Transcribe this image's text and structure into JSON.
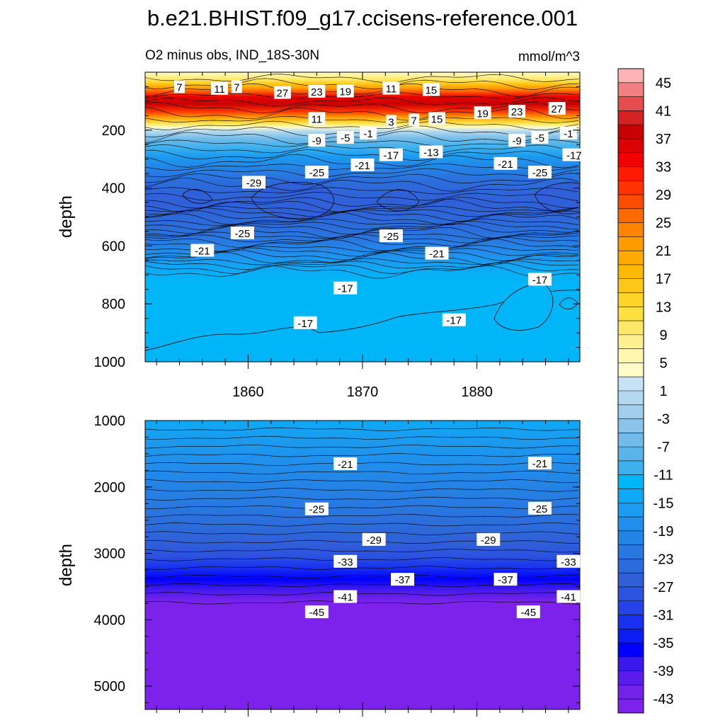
{
  "chart_data": {
    "type": "heatmap",
    "title": "b.e21.BHIST.f09_g17.ccisens-reference.001",
    "subtitle": "O2 minus obs, IND_18S-30N",
    "units": "mmol/m^3",
    "ylabel": "depth",
    "xlim": [
      1851,
      1889
    ],
    "xticks": [
      1860,
      1870,
      1880
    ],
    "colorbar": {
      "labels": [
        "45",
        "41",
        "37",
        "33",
        "29",
        "25",
        "21",
        "17",
        "13",
        "9",
        "5",
        "1",
        "-3",
        "-7",
        "-11",
        "-15",
        "-19",
        "-23",
        "-27",
        "-31",
        "-35",
        "-39",
        "-43"
      ],
      "colors": [
        "#ffb3b3",
        "#f28080",
        "#e34d4d",
        "#d42222",
        "#c80000",
        "#dd0000",
        "#f00000",
        "#ff1a00",
        "#ff3300",
        "#ff4d00",
        "#ff6a00",
        "#ff8400",
        "#ff9a00",
        "#ffaa00",
        "#ffba00",
        "#ffc818",
        "#ffd428",
        "#ffe040",
        "#ffe868",
        "#fff090",
        "#fff6b0",
        "#fffbc8",
        "#c6e2f4",
        "#b4d8f0",
        "#a0ceec",
        "#8ac4ea",
        "#72bbe8",
        "#5ab4ea",
        "#3eb0ee",
        "#00b5f8",
        "#0eaaf6",
        "#1a9cf0",
        "#2090ec",
        "#2484e6",
        "#2878e0",
        "#2c6cda",
        "#3060d8",
        "#2c52e0",
        "#2444e8",
        "#1830f0",
        "#0a1ef4",
        "#0000ff",
        "#3a18ee",
        "#5a1ceb",
        "#7322ea",
        "#7d22ea"
      ]
    },
    "panels": [
      {
        "id": "upper",
        "ylim": [
          1000,
          0
        ],
        "yticks": [
          200,
          400,
          600,
          800,
          1000
        ],
        "xtick_labels_shown": true,
        "contour_labels": [
          {
            "x": 1854.0,
            "y": 50,
            "t": "7"
          },
          {
            "x": 1857.5,
            "y": 56,
            "t": "11"
          },
          {
            "x": 1859.0,
            "y": 50,
            "t": "7"
          },
          {
            "x": 1863.0,
            "y": 70,
            "t": "27"
          },
          {
            "x": 1866.0,
            "y": 66,
            "t": "23"
          },
          {
            "x": 1868.5,
            "y": 65,
            "t": "19"
          },
          {
            "x": 1872.5,
            "y": 55,
            "t": "11"
          },
          {
            "x": 1876.0,
            "y": 60,
            "t": "15"
          },
          {
            "x": 1866.0,
            "y": 160,
            "t": "11"
          },
          {
            "x": 1872.5,
            "y": 170,
            "t": "3"
          },
          {
            "x": 1874.5,
            "y": 165,
            "t": "7"
          },
          {
            "x": 1876.5,
            "y": 160,
            "t": "15"
          },
          {
            "x": 1880.5,
            "y": 140,
            "t": "19"
          },
          {
            "x": 1883.5,
            "y": 135,
            "t": "23"
          },
          {
            "x": 1887.0,
            "y": 125,
            "t": "27"
          },
          {
            "x": 1866.0,
            "y": 235,
            "t": "-9"
          },
          {
            "x": 1868.5,
            "y": 225,
            "t": "-5"
          },
          {
            "x": 1870.5,
            "y": 210,
            "t": "-1"
          },
          {
            "x": 1883.5,
            "y": 235,
            "t": "-9"
          },
          {
            "x": 1885.5,
            "y": 225,
            "t": "-5"
          },
          {
            "x": 1888.0,
            "y": 210,
            "t": "-1"
          },
          {
            "x": 1872.5,
            "y": 285,
            "t": "-17"
          },
          {
            "x": 1876.0,
            "y": 275,
            "t": "-13"
          },
          {
            "x": 1888.5,
            "y": 285,
            "t": "-17"
          },
          {
            "x": 1870.0,
            "y": 320,
            "t": "-21"
          },
          {
            "x": 1882.5,
            "y": 315,
            "t": "-21"
          },
          {
            "x": 1866.0,
            "y": 345,
            "t": "-25"
          },
          {
            "x": 1860.5,
            "y": 380,
            "t": "-29"
          },
          {
            "x": 1885.5,
            "y": 345,
            "t": "-25"
          },
          {
            "x": 1859.5,
            "y": 555,
            "t": "-25"
          },
          {
            "x": 1872.5,
            "y": 565,
            "t": "-25"
          },
          {
            "x": 1856.0,
            "y": 615,
            "t": "-21"
          },
          {
            "x": 1876.5,
            "y": 625,
            "t": "-21"
          },
          {
            "x": 1868.5,
            "y": 745,
            "t": "-17"
          },
          {
            "x": 1885.5,
            "y": 715,
            "t": "-17"
          },
          {
            "x": 1865.0,
            "y": 865,
            "t": "-17"
          },
          {
            "x": 1878.0,
            "y": 855,
            "t": "-17"
          }
        ]
      },
      {
        "id": "lower",
        "ylim": [
          5350,
          1000
        ],
        "yticks": [
          1000,
          2000,
          3000,
          4000,
          5000
        ],
        "xtick_labels_shown": false,
        "contour_labels": [
          {
            "x": 1868.5,
            "y": 1650,
            "t": "-21"
          },
          {
            "x": 1885.5,
            "y": 1640,
            "t": "-21"
          },
          {
            "x": 1866.0,
            "y": 2330,
            "t": "-25"
          },
          {
            "x": 1885.5,
            "y": 2320,
            "t": "-25"
          },
          {
            "x": 1871.0,
            "y": 2790,
            "t": "-29"
          },
          {
            "x": 1881.0,
            "y": 2790,
            "t": "-29"
          },
          {
            "x": 1868.5,
            "y": 3120,
            "t": "-33"
          },
          {
            "x": 1888.0,
            "y": 3120,
            "t": "-33"
          },
          {
            "x": 1873.5,
            "y": 3390,
            "t": "-37"
          },
          {
            "x": 1882.5,
            "y": 3390,
            "t": "-37"
          },
          {
            "x": 1868.5,
            "y": 3650,
            "t": "-41"
          },
          {
            "x": 1888.0,
            "y": 3650,
            "t": "-41"
          },
          {
            "x": 1866.0,
            "y": 3880,
            "t": "-45"
          },
          {
            "x": 1884.5,
            "y": 3880,
            "t": "-45"
          }
        ]
      }
    ]
  }
}
